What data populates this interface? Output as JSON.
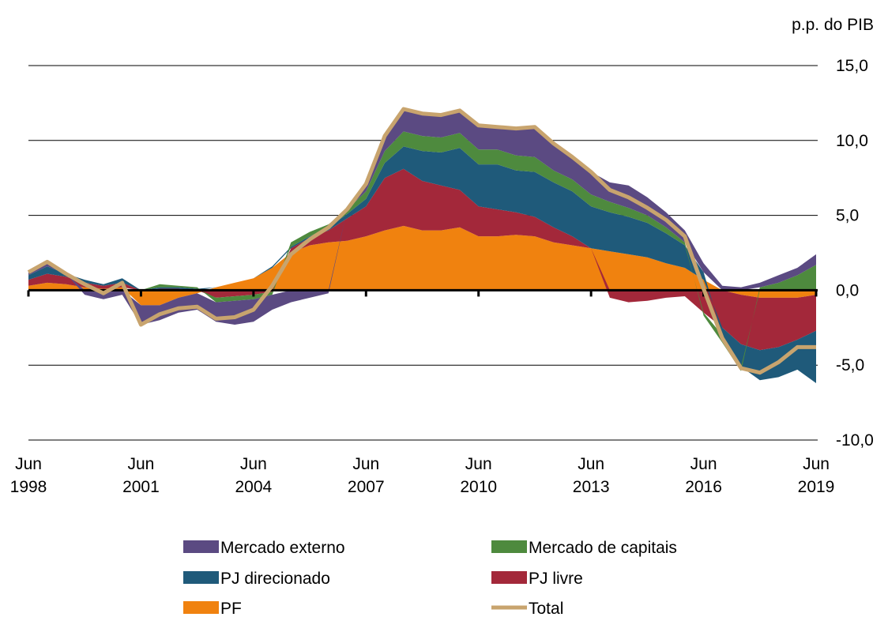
{
  "chart_data": {
    "type": "stacked_area",
    "y_unit_label": "p.p. do PIB",
    "categories": [
      "Jun 1998",
      null,
      null,
      null,
      null,
      null,
      "Jun 2001",
      null,
      null,
      null,
      null,
      null,
      "Jun 2004",
      null,
      null,
      null,
      null,
      null,
      "Jun 2007",
      null,
      null,
      null,
      null,
      null,
      "Jun 2010",
      null,
      null,
      null,
      null,
      null,
      "Jun 2013",
      null,
      null,
      null,
      null,
      null,
      "Jun 2016",
      null,
      null,
      null,
      null,
      null,
      "Jun 2019"
    ],
    "series": [
      {
        "name": "Mercado externo",
        "color": "#5b4a82",
        "values": [
          0.2,
          0.3,
          0.0,
          -0.3,
          -0.6,
          -0.3,
          -1.3,
          -1.0,
          -1.0,
          -1.1,
          -1.3,
          -1.6,
          -1.5,
          -1.0,
          -0.8,
          -0.5,
          -0.2,
          0.0,
          0.5,
          1.0,
          1.5,
          1.5,
          1.5,
          1.5,
          1.6,
          1.5,
          1.8,
          2.0,
          1.8,
          1.5,
          1.5,
          1.3,
          1.5,
          1.2,
          1.0,
          0.8,
          0.6,
          0.3,
          0.2,
          0.3,
          0.5,
          0.5,
          0.7
        ]
      },
      {
        "name": "Mercado de capitais",
        "color": "#4e8a3e",
        "values": [
          0.0,
          0.0,
          0.0,
          0.0,
          0.0,
          0.0,
          0.0,
          0.2,
          0.1,
          0.1,
          -0.3,
          -0.3,
          -0.3,
          -0.2,
          0.3,
          0.3,
          0.2,
          0.3,
          0.5,
          0.8,
          1.0,
          1.0,
          1.0,
          1.0,
          1.0,
          1.0,
          1.0,
          1.0,
          0.8,
          0.8,
          0.8,
          0.7,
          0.6,
          0.5,
          0.4,
          0.2,
          -0.2,
          -0.5,
          -0.3,
          0.2,
          0.5,
          1.0,
          1.7
        ]
      },
      {
        "name": "PJ direcionado",
        "color": "#1f5a7a",
        "values": [
          0.3,
          0.5,
          0.2,
          0.2,
          0.1,
          0.3,
          0.0,
          0.1,
          0.1,
          0.1,
          0.0,
          0.0,
          0.0,
          0.1,
          0.1,
          0.1,
          0.2,
          0.3,
          0.5,
          1.0,
          1.5,
          2.0,
          2.2,
          2.8,
          2.8,
          3.0,
          2.8,
          3.0,
          3.0,
          3.0,
          2.8,
          2.6,
          2.5,
          2.3,
          2.0,
          1.5,
          0.5,
          -0.5,
          -1.5,
          -2.0,
          -2.0,
          -2.0,
          -3.5
        ]
      },
      {
        "name": "PJ livre",
        "color": "#a3283a",
        "values": [
          0.4,
          0.6,
          0.5,
          0.3,
          0.2,
          0.3,
          0.0,
          0.1,
          0.1,
          0.0,
          -0.5,
          -0.4,
          -0.3,
          -0.1,
          0.3,
          0.5,
          0.8,
          1.5,
          2.0,
          3.5,
          3.8,
          3.3,
          3.0,
          2.5,
          2.0,
          1.8,
          1.5,
          1.3,
          1.0,
          0.6,
          0.0,
          -0.5,
          -0.8,
          -0.7,
          -0.5,
          -0.4,
          -1.5,
          -2.5,
          -3.3,
          -3.5,
          -3.3,
          -2.8,
          -2.4
        ]
      },
      {
        "name": "PF",
        "color": "#f0820f",
        "values": [
          0.3,
          0.5,
          0.4,
          0.2,
          0.1,
          0.2,
          -1.0,
          -1.0,
          -0.5,
          -0.2,
          0.2,
          0.5,
          0.8,
          1.5,
          2.5,
          3.0,
          3.2,
          3.3,
          3.6,
          4.0,
          4.3,
          4.0,
          4.0,
          4.2,
          3.6,
          3.6,
          3.7,
          3.6,
          3.2,
          3.0,
          2.8,
          2.6,
          2.4,
          2.2,
          1.8,
          1.5,
          0.7,
          0.0,
          -0.3,
          -0.5,
          -0.5,
          -0.5,
          -0.3
        ]
      },
      {
        "name": "Total",
        "color": "#c8a46e",
        "line": true,
        "values": [
          1.2,
          1.9,
          1.1,
          0.4,
          -0.2,
          0.5,
          -2.3,
          -1.6,
          -1.2,
          -1.1,
          -1.9,
          -1.8,
          -1.3,
          0.3,
          2.4,
          3.4,
          4.2,
          5.4,
          7.1,
          10.3,
          12.1,
          11.8,
          11.7,
          12.0,
          11.0,
          10.9,
          10.8,
          10.9,
          9.8,
          8.9,
          7.9,
          6.7,
          6.2,
          5.5,
          4.7,
          3.6,
          0.1,
          -3.2,
          -5.2,
          -5.5,
          -4.8,
          -3.8,
          -3.8
        ]
      }
    ],
    "ylim": [
      -10,
      15
    ],
    "yticks": [
      {
        "value": -10,
        "label": "-10,0"
      },
      {
        "value": -5,
        "label": "-5,0"
      },
      {
        "value": 0,
        "label": "0,0"
      },
      {
        "value": 5,
        "label": "5,0"
      },
      {
        "value": 10,
        "label": "10,0"
      },
      {
        "value": 15,
        "label": "15,0"
      }
    ],
    "grid": true
  }
}
